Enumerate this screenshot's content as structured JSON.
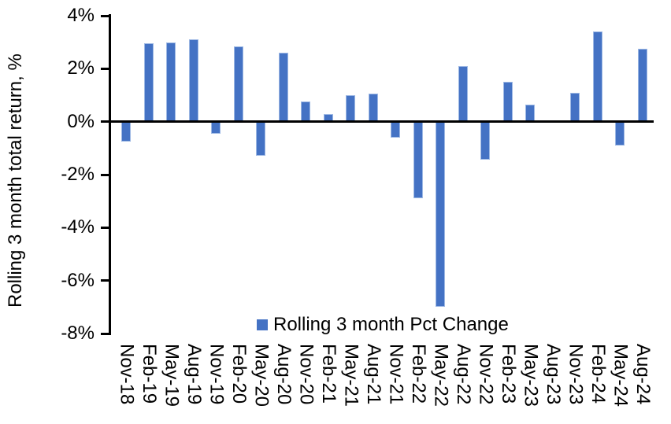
{
  "chart_data": {
    "type": "bar",
    "title": "",
    "xlabel": "",
    "ylabel": "Rolling 3 month total return, %",
    "categories": [
      "Nov-18",
      "Feb-19",
      "May-19",
      "Aug-19",
      "Nov-19",
      "Feb-20",
      "May-20",
      "Aug-20",
      "Nov-20",
      "Feb-21",
      "May-21",
      "Aug-21",
      "Nov-21",
      "Feb-22",
      "May-22",
      "Aug-22",
      "Nov-22",
      "Feb-23",
      "May-23",
      "Aug-23",
      "Nov-23",
      "Feb-24",
      "May-24",
      "Aug-24"
    ],
    "values": [
      -0.75,
      2.95,
      3.0,
      3.1,
      -0.45,
      2.85,
      -1.3,
      2.6,
      0.75,
      0.3,
      1.0,
      1.05,
      -0.6,
      -2.9,
      -7.0,
      2.1,
      -1.45,
      1.5,
      0.65,
      0.0,
      1.1,
      3.4,
      -0.9,
      2.75
    ],
    "ylim": [
      -8,
      4
    ],
    "ytick_step": 2,
    "ytick_labels": [
      "4%",
      "2%",
      "0%",
      "-2%",
      "-4%",
      "-6%",
      "-8%"
    ],
    "grid": false,
    "legend": {
      "label": "Rolling 3 month Pct Change",
      "position": "inside-bottom-center"
    },
    "colors": {
      "bar": "#4472C4",
      "bar_edge": "#9DB8E4",
      "axis": "#000000",
      "text": "#000000"
    }
  }
}
